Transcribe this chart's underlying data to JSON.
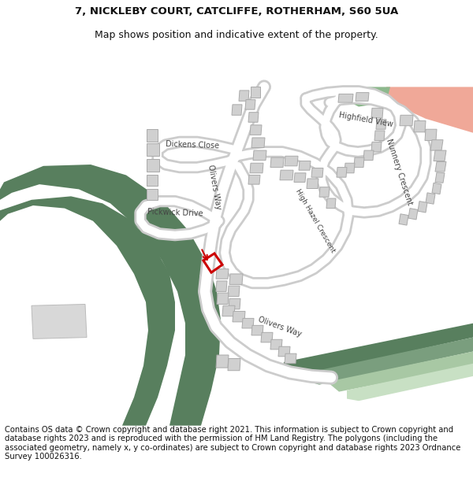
{
  "title_line1": "7, NICKLEBY COURT, CATCLIFFE, ROTHERHAM, S60 5UA",
  "title_line2": "Map shows position and indicative extent of the property.",
  "footer_text": "Contains OS data © Crown copyright and database right 2021. This information is subject to Crown copyright and database rights 2023 and is reproduced with the permission of HM Land Registry. The polygons (including the associated geometry, namely x, y co-ordinates) are subject to Crown copyright and database rights 2023 Ordnance Survey 100026316.",
  "bg_color": "#ffffff",
  "green_dark": "#587f5e",
  "green_mid": "#7a9e7e",
  "green_light": "#a8c8a4",
  "green_pale": "#c8e0c4",
  "highlight_red": "#cc0000",
  "salmon_color": "#f0a898",
  "green_patch": "#8db88d",
  "building_color": "#d0d0d0",
  "building_outline": "#aaaaaa",
  "road_gray": "#cccccc",
  "title_fontsize": 9.5,
  "footer_fontsize": 7.2,
  "figsize": [
    6.0,
    6.25
  ],
  "dpi": 100
}
